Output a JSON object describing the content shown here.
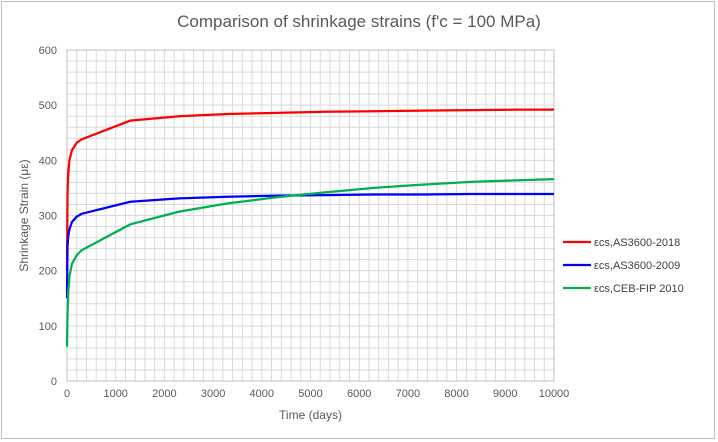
{
  "chart_data": {
    "type": "line",
    "title": "Comparison of shrinkage strains (f'c = 100 MPa)",
    "xlabel": "Time (days)",
    "ylabel": "Shrinkage Strain (με)",
    "xlim": [
      0,
      10000
    ],
    "ylim": [
      0,
      600
    ],
    "x_ticks": [
      0,
      1000,
      2000,
      3000,
      4000,
      5000,
      6000,
      7000,
      8000,
      9000,
      10000
    ],
    "y_ticks": [
      0,
      100,
      200,
      300,
      400,
      500,
      600
    ],
    "grid": true,
    "legend_position": "right",
    "series": [
      {
        "name": "εcs,AS3600-2018",
        "color": "#ff0000",
        "x": [
          0,
          10,
          25,
          50,
          100,
          200,
          300,
          1300,
          2300,
          3300,
          4300,
          5300,
          6300,
          7300,
          8300,
          9300,
          10000
        ],
        "y": [
          200,
          340,
          375,
          400,
          418,
          432,
          438,
          472,
          480,
          484,
          486,
          488,
          489,
          490,
          491,
          492,
          492
        ]
      },
      {
        "name": "εcs,AS3600-2009",
        "color": "#0000ff",
        "x": [
          0,
          10,
          25,
          50,
          100,
          200,
          300,
          1300,
          2300,
          3300,
          4300,
          5300,
          6300,
          7300,
          8300,
          9300,
          10000
        ],
        "y": [
          150,
          245,
          262,
          275,
          288,
          298,
          303,
          325,
          331,
          334,
          336,
          337,
          338,
          338,
          339,
          339,
          339
        ]
      },
      {
        "name": "εcs,CEB-FIP 2010",
        "color": "#00b050",
        "x": [
          0,
          10,
          25,
          50,
          100,
          200,
          300,
          1300,
          2300,
          3300,
          4300,
          5300,
          6300,
          7300,
          8300,
          9300,
          10000
        ],
        "y": [
          62,
          120,
          160,
          190,
          212,
          228,
          237,
          284,
          307,
          322,
          333,
          342,
          350,
          356,
          361,
          364,
          366
        ]
      }
    ]
  }
}
